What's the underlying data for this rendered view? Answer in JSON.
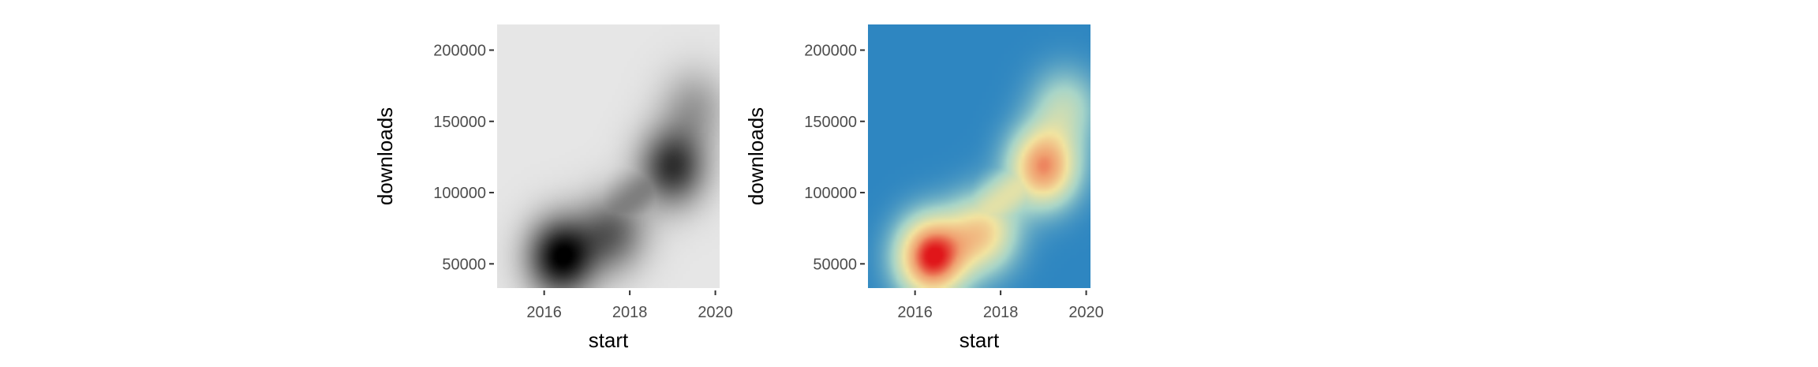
{
  "chart_data": [
    {
      "type": "heatmap",
      "palette": "greys",
      "colors": {
        "low": "#e6e6e6",
        "high": "#000000"
      },
      "xlabel": "start",
      "ylabel": "downloads",
      "xlim": [
        2014.9,
        2020.1
      ],
      "ylim": [
        33000,
        218000
      ],
      "x_ticks": [
        2016,
        2018,
        2020
      ],
      "x_tick_labels": [
        "2016",
        "2018",
        "2020"
      ],
      "y_ticks": [
        50000,
        100000,
        150000,
        200000
      ],
      "y_tick_labels": [
        "50000",
        "100000",
        "150000",
        "200000"
      ],
      "grid": false,
      "legend": "none",
      "density_peaks": [
        {
          "x": 2016.4,
          "y": 55000,
          "weight": 1.0
        },
        {
          "x": 2017.6,
          "y": 72000,
          "weight": 0.55
        },
        {
          "x": 2019.0,
          "y": 118000,
          "weight": 0.78
        },
        {
          "x": 2019.5,
          "y": 160000,
          "weight": 0.3
        }
      ]
    },
    {
      "type": "heatmap",
      "palette": "spectral",
      "colors": {
        "low": "#2e86c1",
        "mid_low": "#a8d5c8",
        "mid": "#f2e4a0",
        "mid_high": "#f0a070",
        "high": "#e0161a"
      },
      "xlabel": "start",
      "ylabel": "downloads",
      "xlim": [
        2014.9,
        2020.1
      ],
      "ylim": [
        33000,
        218000
      ],
      "x_ticks": [
        2016,
        2018,
        2020
      ],
      "x_tick_labels": [
        "2016",
        "2018",
        "2020"
      ],
      "y_ticks": [
        50000,
        100000,
        150000,
        200000
      ],
      "y_tick_labels": [
        "50000",
        "100000",
        "150000",
        "200000"
      ],
      "grid": false,
      "legend": "none",
      "density_peaks": [
        {
          "x": 2016.4,
          "y": 55000,
          "weight": 1.0
        },
        {
          "x": 2017.6,
          "y": 72000,
          "weight": 0.55
        },
        {
          "x": 2019.0,
          "y": 118000,
          "weight": 0.78
        },
        {
          "x": 2019.5,
          "y": 160000,
          "weight": 0.3
        }
      ]
    }
  ]
}
